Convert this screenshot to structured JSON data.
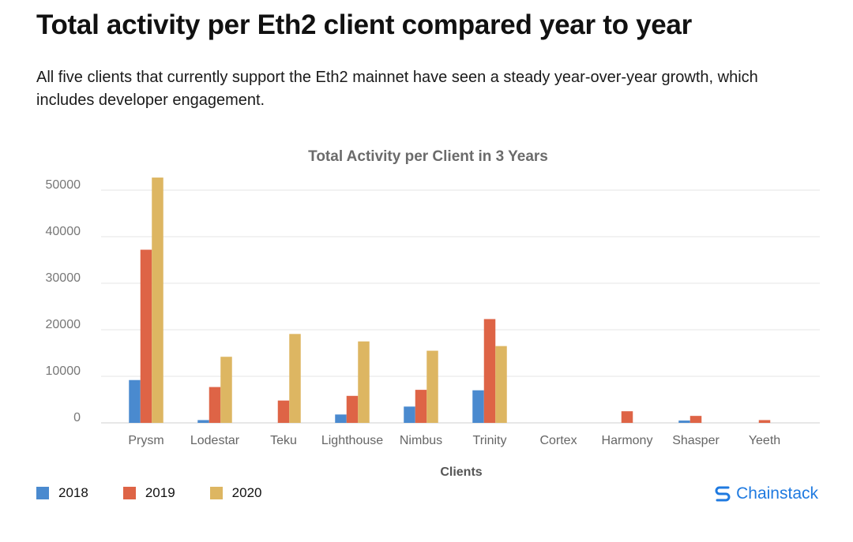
{
  "page": {
    "title": "Total activity per Eth2 client compared year to year",
    "description": "All five clients that currently support the Eth2 mainnet have seen a steady year-over-year growth, which includes developer engagement."
  },
  "brand": {
    "name": "Chainstack",
    "color": "#1f7ae0",
    "icon": "chainstack-logo-icon"
  },
  "chart_data": {
    "type": "bar",
    "title": "Total Activity per Client in 3 Years",
    "xlabel": "Clients",
    "ylabel": "",
    "categories": [
      "Prysm",
      "Lodestar",
      "Teku",
      "Lighthouse",
      "Nimbus",
      "Trinity",
      "Cortex",
      "Harmony",
      "Shasper",
      "Yeeth"
    ],
    "series": [
      {
        "name": "2018",
        "color": "#4a8acf",
        "values": [
          9200,
          600,
          0,
          1800,
          3500,
          7000,
          0,
          0,
          500,
          0
        ]
      },
      {
        "name": "2019",
        "color": "#de6446",
        "values": [
          37200,
          7700,
          4800,
          5800,
          7100,
          22300,
          0,
          2500,
          1500,
          600
        ]
      },
      {
        "name": "2020",
        "color": "#ddb662",
        "values": [
          52700,
          14200,
          19100,
          17500,
          15500,
          16500,
          0,
          0,
          0,
          0
        ]
      }
    ],
    "yticks": [
      0,
      10000,
      20000,
      30000,
      40000,
      50000
    ],
    "ylim": [
      0,
      52700
    ],
    "grid": true,
    "legend": "bottom-left"
  }
}
